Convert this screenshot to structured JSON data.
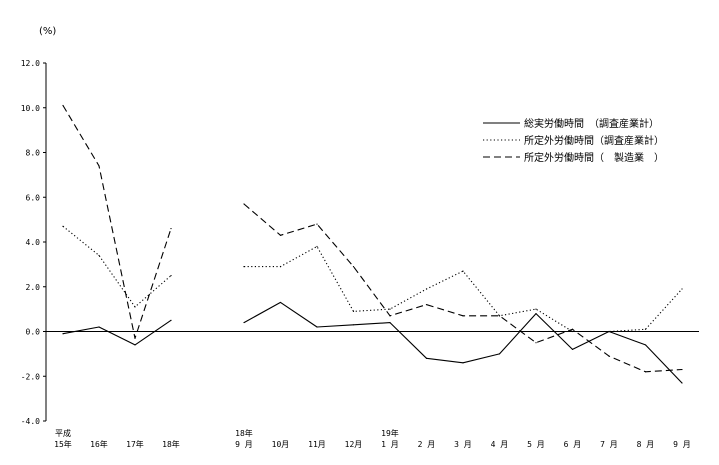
{
  "chart_data": {
    "type": "line",
    "unit_label": "(%)",
    "ylim": [
      -4.0,
      12.0
    ],
    "y_ticks": [
      "12.0",
      "10.0",
      "8.0",
      "6.0",
      "4.0",
      "2.0",
      "0.0",
      "-2.0",
      "-4.0"
    ],
    "grid": false,
    "legend_position": "top-right",
    "categories": [
      {
        "top": "平成",
        "bottom": "15年"
      },
      {
        "top": "",
        "bottom": "16年"
      },
      {
        "top": "",
        "bottom": "17年"
      },
      {
        "top": "",
        "bottom": "18年"
      },
      {
        "top": "18年",
        "bottom": "9 月"
      },
      {
        "top": "",
        "bottom": "10月"
      },
      {
        "top": "",
        "bottom": "11月"
      },
      {
        "top": "",
        "bottom": "12月"
      },
      {
        "top": "19年",
        "bottom": "1 月"
      },
      {
        "top": "",
        "bottom": "2 月"
      },
      {
        "top": "",
        "bottom": "3 月"
      },
      {
        "top": "",
        "bottom": "4 月"
      },
      {
        "top": "",
        "bottom": "5 月"
      },
      {
        "top": "",
        "bottom": "6 月"
      },
      {
        "top": "",
        "bottom": "7 月"
      },
      {
        "top": "",
        "bottom": "8 月"
      },
      {
        "top": "",
        "bottom": "9 月"
      }
    ],
    "series": [
      {
        "name": "総実労働時間　（調査産業計）",
        "style": "solid",
        "annual": [
          -0.1,
          0.2,
          -0.6,
          0.5
        ],
        "monthly": [
          0.4,
          1.3,
          0.2,
          0.3,
          0.4,
          -1.2,
          -1.4,
          -1.0,
          0.8,
          -0.8,
          0.0,
          -0.6,
          -2.3
        ]
      },
      {
        "name": "所定外労働時間（調査産業計）",
        "style": "dotted",
        "annual": [
          4.7,
          3.4,
          1.1,
          2.5
        ],
        "monthly": [
          2.9,
          2.9,
          3.8,
          0.9,
          1.0,
          1.9,
          2.7,
          0.7,
          1.0,
          0.0,
          0.0,
          0.1,
          1.9
        ]
      },
      {
        "name": "所定外労働時間（　製造業　）",
        "style": "dashed",
        "annual": [
          10.1,
          7.4,
          -0.3,
          4.6
        ],
        "monthly": [
          5.7,
          4.3,
          4.8,
          2.9,
          0.7,
          1.2,
          0.7,
          0.7,
          -0.5,
          0.1,
          -1.1,
          -1.8,
          -1.7
        ]
      }
    ]
  }
}
